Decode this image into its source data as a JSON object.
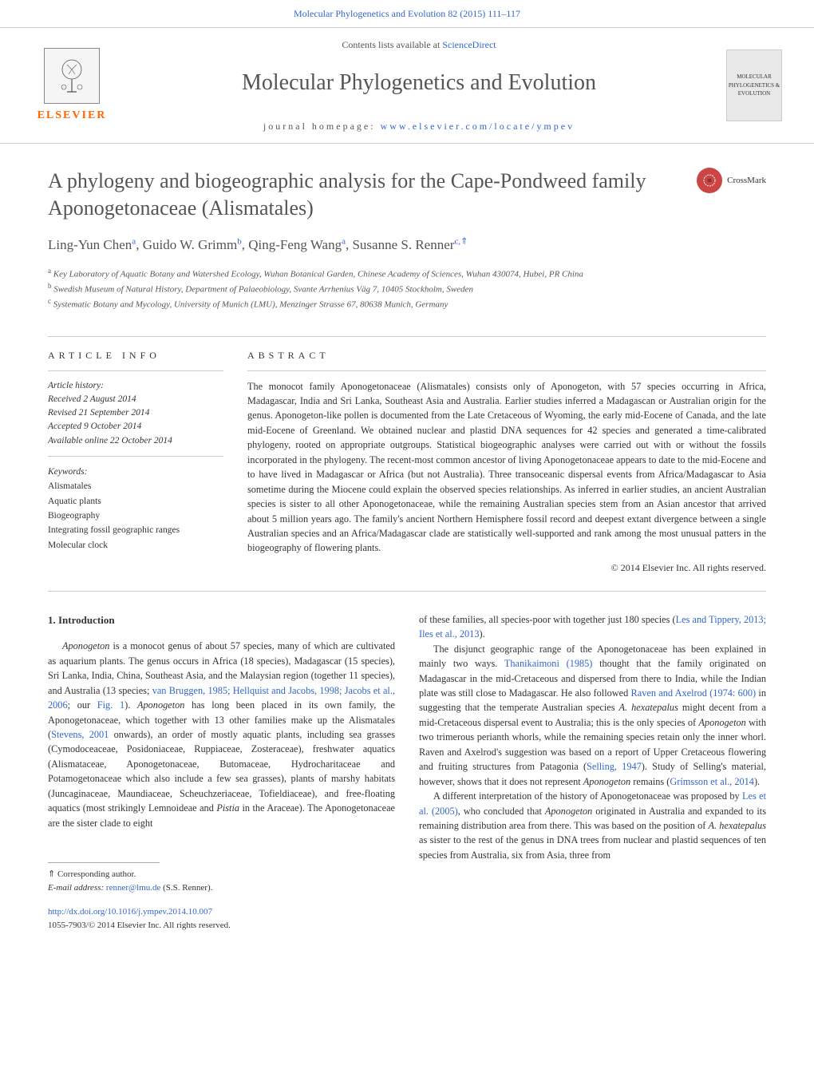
{
  "top_link": "Molecular Phylogenetics and Evolution 82 (2015) 111–117",
  "header": {
    "contents_prefix": "Contents lists available at ",
    "contents_link": "ScienceDirect",
    "journal_title": "Molecular Phylogenetics and Evolution",
    "homepage_prefix": "journal homepage: ",
    "homepage_link": "www.elsevier.com/locate/ympev",
    "elsevier": "ELSEVIER",
    "cover_text": "MOLECULAR PHYLOGENETICS & EVOLUTION"
  },
  "article": {
    "title": "A phylogeny and biogeographic analysis for the Cape-Pondweed family Aponogetonaceae (Alismatales)",
    "crossmark": "CrossMark",
    "authors_html": "Ling-Yun Chen<sup>a</sup>, Guido W. Grimm<sup>b</sup>, Qing-Feng Wang<sup>a</sup>, Susanne S. Renner<sup>c,⇑</sup>",
    "affiliations": {
      "a": "Key Laboratory of Aquatic Botany and Watershed Ecology, Wuhan Botanical Garden, Chinese Academy of Sciences, Wuhan 430074, Hubei, PR China",
      "b": "Swedish Museum of Natural History, Department of Palaeobiology, Svante Arrhenius Väg 7, 10405 Stockholm, Sweden",
      "c": "Systematic Botany and Mycology, University of Munich (LMU), Menzinger Strasse 67, 80638 Munich, Germany"
    }
  },
  "info": {
    "section_label": "article info",
    "history_label": "Article history:",
    "received": "Received 2 August 2014",
    "revised": "Revised 21 September 2014",
    "accepted": "Accepted 9 October 2014",
    "online": "Available online 22 October 2014",
    "keywords_label": "Keywords:",
    "keywords": [
      "Alismatales",
      "Aquatic plants",
      "Biogeography",
      "Integrating fossil geographic ranges",
      "Molecular clock"
    ]
  },
  "abstract": {
    "section_label": "abstract",
    "text": "The monocot family Aponogetonaceae (Alismatales) consists only of Aponogeton, with 57 species occurring in Africa, Madagascar, India and Sri Lanka, Southeast Asia and Australia. Earlier studies inferred a Madagascan or Australian origin for the genus. Aponogeton-like pollen is documented from the Late Cretaceous of Wyoming, the early mid-Eocene of Canada, and the late mid-Eocene of Greenland. We obtained nuclear and plastid DNA sequences for 42 species and generated a time-calibrated phylogeny, rooted on appropriate outgroups. Statistical biogeographic analyses were carried out with or without the fossils incorporated in the phylogeny. The recent-most common ancestor of living Aponogetonaceae appears to date to the mid-Eocene and to have lived in Madagascar or Africa (but not Australia). Three transoceanic dispersal events from Africa/Madagascar to Asia sometime during the Miocene could explain the observed species relationships. As inferred in earlier studies, an ancient Australian species is sister to all other Aponogetonaceae, while the remaining Australian species stem from an Asian ancestor that arrived about 5 million years ago. The family's ancient Northern Hemisphere fossil record and deepest extant divergence between a single Australian species and an Africa/Madagascar clade are statistically well-supported and rank among the most unusual patters in the biogeography of flowering plants.",
    "copyright": "© 2014 Elsevier Inc. All rights reserved."
  },
  "body": {
    "intro_heading": "1. Introduction",
    "left_col": "<p class=\"indent\"><em>Aponogeton</em> is a monocot genus of about 57 species, many of which are cultivated as aquarium plants. The genus occurs in Africa (18 species), Madagascar (15 species), Sri Lanka, India, China, Southeast Asia, and the Malaysian region (together 11 species), and Australia (13 species; <a>van Bruggen, 1985; Hellquist and Jacobs, 1998; Jacobs et al., 2006</a>; our <a>Fig. 1</a>). <em>Aponogeton</em> has long been placed in its own family, the Aponogetonaceae, which together with 13 other families make up the Alismatales (<a>Stevens, 2001</a> onwards), an order of mostly aquatic plants, including sea grasses (Cymodoceaceae, Posidoniaceae, Ruppiaceae, Zosteraceae), freshwater aquatics (Alismataceae, Aponogetonaceae, Butomaceae, Hydrocharitaceae and Potamogetonaceae which also include a few sea grasses), plants of marshy habitats (Juncaginaceae, Maundiaceae, Scheuchzeriaceae, Tofieldiaceae), and free-floating aquatics (most strikingly Lemnoideae and <em>Pistia</em> in the Araceae). The Aponogetonaceae are the sister clade to eight</p>",
    "right_col": "<p>of these families, all species-poor with together just 180 species (<a>Les and Tippery, 2013; Iles et al., 2013</a>).</p><p class=\"indent\">The disjunct geographic range of the Aponogetonaceae has been explained in mainly two ways. <a>Thanikaimoni (1985)</a> thought that the family originated on Madagascar in the mid-Cretaceous and dispersed from there to India, while the Indian plate was still close to Madagascar. He also followed <a>Raven and Axelrod (1974: 600)</a> in suggesting that the temperate Australian species <em>A. hexatepalus</em> might decent from a mid-Cretaceous dispersal event to Australia; this is the only species of <em>Aponogeton</em> with two trimerous perianth whorls, while the remaining species retain only the inner whorl. Raven and Axelrod's suggestion was based on a report of Upper Cretaceous flowering and fruiting structures from Patagonia (<a>Selling, 1947</a>). Study of Selling's material, however, shows that it does not represent <em>Aponogeton</em> remains (<a>Grímsson et al., 2014</a>).</p><p class=\"indent\">A different interpretation of the history of Aponogetonaceae was proposed by <a>Les et al. (2005)</a>, who concluded that <em>Aponogeton</em> originated in Australia and expanded to its remaining distribution area from there. This was based on the position of <em>A. hexatepalus</em> as sister to the rest of the genus in DNA trees from nuclear and plastid sequences of ten species from Australia, six from Asia, three from</p>"
  },
  "footer": {
    "corresponding": "⇑ Corresponding author.",
    "email_label": "E-mail address: ",
    "email": "renner@lmu.de",
    "email_suffix": " (S.S. Renner).",
    "doi": "http://dx.doi.org/10.1016/j.ympev.2014.10.007",
    "issn_line": "1055-7903/© 2014 Elsevier Inc. All rights reserved."
  }
}
